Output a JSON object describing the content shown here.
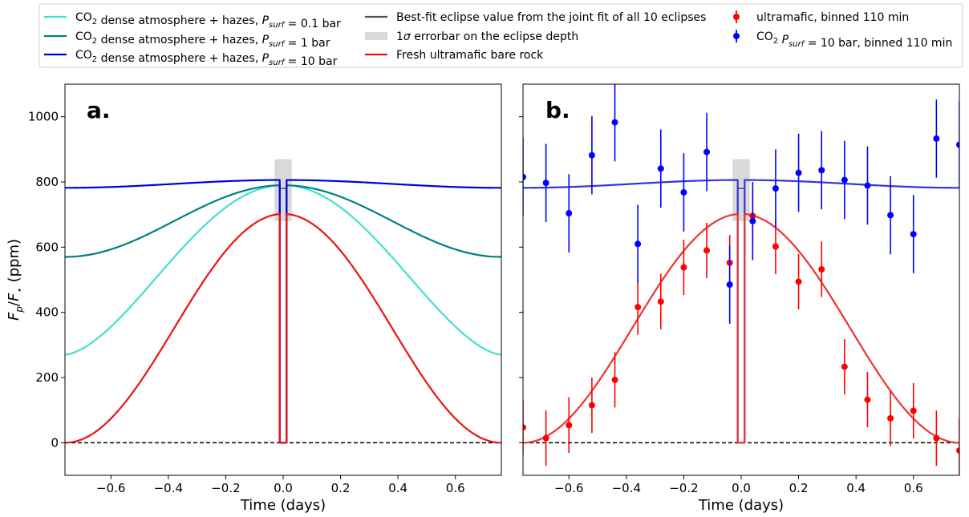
{
  "legend": {
    "items": [
      {
        "id": "co2_01",
        "kind": "line",
        "color": "#40E0D0",
        "parts": [
          {
            "t": "CO"
          },
          {
            "t": "2",
            "sub": true
          },
          {
            "t": " dense atmosphere + hazes, "
          },
          {
            "t": "P",
            "it": true
          },
          {
            "t": "surf",
            "it": true,
            "sub": true
          },
          {
            "t": " = 0.1 bar"
          }
        ]
      },
      {
        "id": "co2_1",
        "kind": "line",
        "color": "#008080",
        "parts": [
          {
            "t": "CO"
          },
          {
            "t": "2",
            "sub": true
          },
          {
            "t": " dense atmosphere + hazes, "
          },
          {
            "t": "P",
            "it": true
          },
          {
            "t": "surf",
            "it": true,
            "sub": true
          },
          {
            "t": " = 1 bar"
          }
        ]
      },
      {
        "id": "co2_10",
        "kind": "line",
        "color": "#0000DD",
        "parts": [
          {
            "t": "CO"
          },
          {
            "t": "2",
            "sub": true
          },
          {
            "t": " dense atmosphere + hazes, "
          },
          {
            "t": "P",
            "it": true
          },
          {
            "t": "surf",
            "it": true,
            "sub": true
          },
          {
            "t": " = 10 bar"
          }
        ]
      },
      {
        "id": "bestfit",
        "kind": "line",
        "color": "#555555",
        "parts": [
          {
            "t": "Best-fit eclipse value from the joint fit of all 10 eclipses"
          }
        ]
      },
      {
        "id": "errband",
        "kind": "patch",
        "color": "#D9D9D9",
        "parts": [
          {
            "t": "1"
          },
          {
            "t": "σ",
            "it": true
          },
          {
            "t": " errorbar on the eclipse depth"
          }
        ]
      },
      {
        "id": "ultra",
        "kind": "line",
        "color": "#EE1111",
        "parts": [
          {
            "t": "Fresh ultramafic bare rock"
          }
        ]
      },
      {
        "id": "ultra_bin",
        "kind": "errpoint",
        "color": "#FF0000",
        "parts": [
          {
            "t": "ultramafic, binned 110 min"
          }
        ]
      },
      {
        "id": "co2_bin",
        "kind": "errpoint",
        "color": "#0000FF",
        "parts": [
          {
            "t": "CO"
          },
          {
            "t": "2",
            "sub": true
          },
          {
            "t": " "
          },
          {
            "t": "P",
            "it": true
          },
          {
            "t": "surf",
            "it": true,
            "sub": true
          },
          {
            "t": " = 10 bar, binned 110 min"
          }
        ]
      }
    ]
  },
  "panels": {
    "a": {
      "label": "a."
    },
    "b": {
      "label": "b."
    }
  },
  "chart_data": [
    {
      "type": "line",
      "panel": "a",
      "title": "",
      "xlabel": "Time (days)",
      "ylabel": "F_p/F_⋆ (ppm)",
      "xlim": [
        -0.76,
        0.76
      ],
      "ylim": [
        -100,
        1100
      ],
      "xticks": [
        -0.6,
        -0.4,
        -0.2,
        0.0,
        0.2,
        0.4,
        0.6
      ],
      "xtick_labels": [
        "−0.6",
        "−0.4",
        "−0.2",
        "0.0",
        "0.2",
        "0.4",
        "0.6"
      ],
      "yticks": [
        0,
        200,
        400,
        600,
        800,
        1000
      ],
      "ytick_labels": [
        "0",
        "200",
        "400",
        "600",
        "800",
        "1000"
      ],
      "eclipse": {
        "t_start": -0.012,
        "t_end": 0.012,
        "bestfit_depth": 780
      },
      "error_band": {
        "x": [
          -0.03,
          0.03
        ],
        "y": [
          680,
          870
        ]
      },
      "zero_line": 0,
      "series": [
        {
          "name": "CO2 dense atmosphere + hazes, P_surf = 0.1 bar",
          "color": "#40E0D0",
          "base": 270,
          "peak": 790,
          "shape": "sharp"
        },
        {
          "name": "CO2 dense atmosphere + hazes, P_surf = 1 bar",
          "color": "#008080",
          "base": 570,
          "peak": 790,
          "shape": "cos"
        },
        {
          "name": "CO2 dense atmosphere + hazes, P_surf = 10 bar",
          "color": "#0000DD",
          "base": 782,
          "peak": 806,
          "shape": "cos"
        },
        {
          "name": "Fresh ultramafic bare rock",
          "color": "#EE1111",
          "base": 0,
          "peak": 702,
          "shape": "cos"
        }
      ]
    },
    {
      "type": "scatter",
      "panel": "b",
      "title": "",
      "xlabel": "Time (days)",
      "xlim": [
        -0.76,
        0.76
      ],
      "ylim": [
        -100,
        1100
      ],
      "xticks": [
        -0.6,
        -0.4,
        -0.2,
        0.0,
        0.2,
        0.4,
        0.6
      ],
      "xtick_labels": [
        "−0.6",
        "−0.4",
        "−0.2",
        "0.0",
        "0.2",
        "0.4",
        "0.6"
      ],
      "yticks": [
        0,
        200,
        400,
        600,
        800,
        1000
      ],
      "eclipse": {
        "t_start": -0.012,
        "t_end": 0.012,
        "bestfit_depth": 780
      },
      "error_band": {
        "x": [
          -0.03,
          0.03
        ],
        "y": [
          680,
          870
        ]
      },
      "zero_line": 0,
      "model_lines": [
        {
          "name": "CO2 P_surf = 10 bar model",
          "color": "#3333DD",
          "base": 782,
          "peak": 806,
          "shape": "cos"
        },
        {
          "name": "Fresh ultramafic bare rock model",
          "color": "#EE3333",
          "base": 0,
          "peak": 702,
          "shape": "cos"
        }
      ],
      "series": [
        {
          "name": "ultramafic, binned 110 min",
          "color": "#FF0000",
          "points": [
            {
              "x": -0.76,
              "y": 47,
              "err": 85
            },
            {
              "x": -0.68,
              "y": 14,
              "err": 85
            },
            {
              "x": -0.6,
              "y": 54,
              "err": 85
            },
            {
              "x": -0.52,
              "y": 115,
              "err": 85
            },
            {
              "x": -0.44,
              "y": 193,
              "err": 85
            },
            {
              "x": -0.36,
              "y": 416,
              "err": 85
            },
            {
              "x": -0.28,
              "y": 433,
              "err": 85
            },
            {
              "x": -0.2,
              "y": 538,
              "err": 85
            },
            {
              "x": -0.12,
              "y": 590,
              "err": 85
            },
            {
              "x": -0.04,
              "y": 552,
              "err": 85
            },
            {
              "x": 0.04,
              "y": 696,
              "err": 85
            },
            {
              "x": 0.12,
              "y": 602,
              "err": 85
            },
            {
              "x": 0.2,
              "y": 494,
              "err": 85
            },
            {
              "x": 0.28,
              "y": 532,
              "err": 85
            },
            {
              "x": 0.36,
              "y": 233,
              "err": 85
            },
            {
              "x": 0.44,
              "y": 132,
              "err": 85
            },
            {
              "x": 0.52,
              "y": 75,
              "err": 85
            },
            {
              "x": 0.6,
              "y": 98,
              "err": 85
            },
            {
              "x": 0.68,
              "y": 14,
              "err": 85
            },
            {
              "x": 0.76,
              "y": -24,
              "err": 100
            }
          ]
        },
        {
          "name": "CO2 P_surf = 10 bar, binned 110 min",
          "color": "#0000FF",
          "points": [
            {
              "x": -0.76,
              "y": 815,
              "err": 120
            },
            {
              "x": -0.68,
              "y": 797,
              "err": 120
            },
            {
              "x": -0.6,
              "y": 704,
              "err": 120
            },
            {
              "x": -0.52,
              "y": 882,
              "err": 120
            },
            {
              "x": -0.44,
              "y": 983,
              "err": 120
            },
            {
              "x": -0.36,
              "y": 610,
              "err": 120
            },
            {
              "x": -0.28,
              "y": 841,
              "err": 120
            },
            {
              "x": -0.2,
              "y": 768,
              "err": 120
            },
            {
              "x": -0.12,
              "y": 892,
              "err": 120
            },
            {
              "x": -0.04,
              "y": 485,
              "err": 120
            },
            {
              "x": 0.04,
              "y": 680,
              "err": 120
            },
            {
              "x": 0.12,
              "y": 780,
              "err": 120
            },
            {
              "x": 0.2,
              "y": 828,
              "err": 120
            },
            {
              "x": 0.28,
              "y": 836,
              "err": 120
            },
            {
              "x": 0.36,
              "y": 806,
              "err": 120
            },
            {
              "x": 0.44,
              "y": 789,
              "err": 120
            },
            {
              "x": 0.52,
              "y": 698,
              "err": 120
            },
            {
              "x": 0.6,
              "y": 640,
              "err": 120
            },
            {
              "x": 0.68,
              "y": 933,
              "err": 120
            },
            {
              "x": 0.76,
              "y": 914,
              "err": 135
            }
          ]
        }
      ]
    }
  ]
}
